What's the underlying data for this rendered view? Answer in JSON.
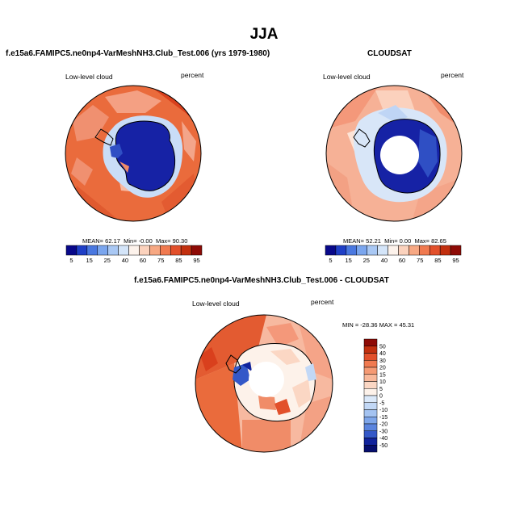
{
  "main_title": "JJA",
  "panels": {
    "model": {
      "title": "f.e15a6.FAMIPC5.ne0np4-VarMeshNH3.Club_Test.006 (yrs 1979-1980)",
      "variable": "Low-level cloud",
      "units": "percent",
      "stats": {
        "mean_label": "MEAN=",
        "mean": "62.17",
        "min_label": "Min=",
        "min": "-0.00",
        "max_label": "Max=",
        "max": "90.30"
      }
    },
    "obs": {
      "title": "CLOUDSAT",
      "variable": "Low-level cloud",
      "units": "percent",
      "stats": {
        "mean_label": "MEAN=",
        "mean": "52.21",
        "min_label": "Min=",
        "min": "0.00",
        "max_label": "Max=",
        "max": "82.65"
      }
    },
    "diff": {
      "title": "f.e15a6.FAMIPC5.ne0np4-VarMeshNH3.Club_Test.006 - CLOUDSAT",
      "variable": "Low-level cloud",
      "units": "percent",
      "stats_text": "MIN = -28.36 MAX = 45.31"
    }
  },
  "colorbars": {
    "field": {
      "labels": [
        "5",
        "15",
        "25",
        "40",
        "60",
        "75",
        "85",
        "95"
      ],
      "colors": [
        "#08088a",
        "#1f3fc6",
        "#4a78e0",
        "#7ba6ee",
        "#a9c8f4",
        "#d4e5f9",
        "#fdf3ec",
        "#fbd2bd",
        "#f7a883",
        "#f07a50",
        "#e2502b",
        "#c2300f",
        "#8e0b06"
      ]
    },
    "diff": {
      "labels": [
        "50",
        "40",
        "30",
        "20",
        "15",
        "10",
        "5",
        "0",
        "-5",
        "-10",
        "-15",
        "-20",
        "-30",
        "-40",
        "-50"
      ],
      "colors": [
        "#8e0b06",
        "#c2300f",
        "#e2502b",
        "#f07a50",
        "#f59a74",
        "#f8b89a",
        "#fbd7c4",
        "#fdf2ea",
        "#dbe9fa",
        "#c2d8f6",
        "#a4c3f1",
        "#7ea6ea",
        "#5a84de",
        "#3458c8",
        "#11239c",
        "#060e6e"
      ]
    }
  },
  "map_colors": {
    "land_edge": "#000000",
    "very_high": "#d9401d",
    "high": "#ea6b3c",
    "med_high": "#f4977a",
    "med": "#fbd1bd",
    "low": "#c9ddf7",
    "very_low": "#1622a5",
    "missing": "#ffffff"
  }
}
